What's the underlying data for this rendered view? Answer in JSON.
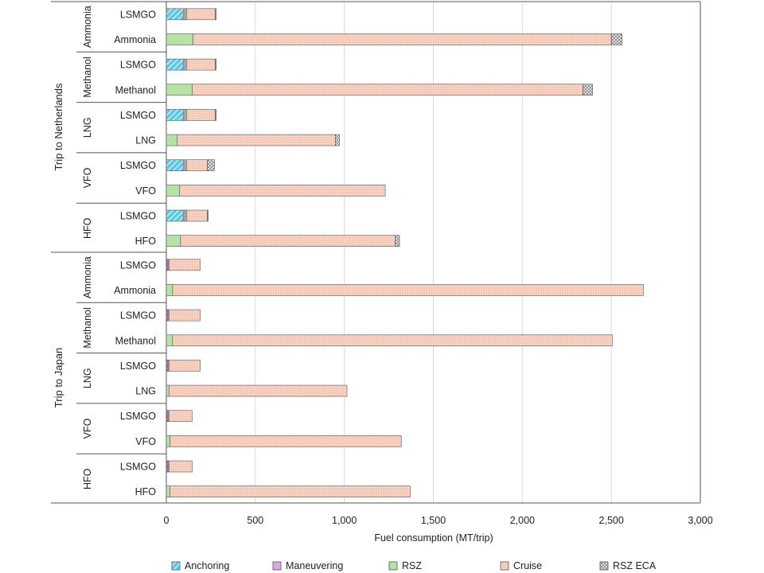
{
  "chart_data": {
    "type": "bar",
    "orientation": "horizontal",
    "stacked": true,
    "xlabel": "Fuel consumption (MT/trip)",
    "xlim": [
      0,
      3000
    ],
    "xticks": [
      0,
      500,
      1000,
      1500,
      2000,
      2500,
      3000
    ],
    "xtick_labels": [
      "0",
      "500",
      "1,000",
      "1,500",
      "2,000",
      "2,500",
      "3,000"
    ],
    "grid": "vertical",
    "legend_position": "bottom",
    "series": [
      {
        "name": "Anchoring",
        "color": "#5bc8e8",
        "pattern": "diagonal-stripes"
      },
      {
        "name": "Maneuvering",
        "color": "#d9a6e6",
        "pattern": "solid"
      },
      {
        "name": "RSZ",
        "color": "#b5e3a5",
        "pattern": "solid"
      },
      {
        "name": "Cruise",
        "color": "#f6c8b8",
        "pattern": "fine-grid"
      },
      {
        "name": "RSZ ECA",
        "color": "#b8b8b8",
        "pattern": "crosshatch"
      }
    ],
    "trips": [
      {
        "label": "Trip to Netherlands",
        "groups": [
          {
            "label": "Ammonia",
            "bars": [
              {
                "label": "LSMGO",
                "values": [
                  95,
                  10,
                  10,
                  160,
                  5
                ]
              },
              {
                "label": "Ammonia",
                "values": [
                  0,
                  0,
                  150,
                  2350,
                  60
                ]
              }
            ]
          },
          {
            "label": "Methanol",
            "bars": [
              {
                "label": "LSMGO",
                "values": [
                  95,
                  10,
                  10,
                  160,
                  5
                ]
              },
              {
                "label": "Methanol",
                "values": [
                  0,
                  0,
                  145,
                  2195,
                  55
                ]
              }
            ]
          },
          {
            "label": "LNG",
            "bars": [
              {
                "label": "LSMGO",
                "values": [
                  95,
                  10,
                  10,
                  160,
                  5
                ]
              },
              {
                "label": "LNG",
                "values": [
                  0,
                  0,
                  60,
                  890,
                  22
                ]
              }
            ]
          },
          {
            "label": "VFO",
            "bars": [
              {
                "label": "LSMGO",
                "values": [
                  95,
                  10,
                  10,
                  115,
                  40
                ]
              },
              {
                "label": "VFO",
                "values": [
                  0,
                  0,
                  75,
                  1155,
                  0
                ]
              }
            ]
          },
          {
            "label": "HFO",
            "bars": [
              {
                "label": "LSMGO",
                "values": [
                  95,
                  10,
                  10,
                  115,
                  5
                ]
              },
              {
                "label": "HFO",
                "values": [
                  0,
                  0,
                  80,
                  1205,
                  25
                ]
              }
            ]
          }
        ]
      },
      {
        "label": "Trip to Japan",
        "groups": [
          {
            "label": "Ammonia",
            "bars": [
              {
                "label": "LSMGO",
                "values": [
                  5,
                  5,
                  5,
                  175,
                  0
                ]
              },
              {
                "label": "Ammonia",
                "values": [
                  0,
                  0,
                  35,
                  2645,
                  0
                ]
              }
            ]
          },
          {
            "label": "Methanol",
            "bars": [
              {
                "label": "LSMGO",
                "values": [
                  5,
                  5,
                  5,
                  175,
                  0
                ]
              },
              {
                "label": "Methanol",
                "values": [
                  0,
                  0,
                  35,
                  2470,
                  0
                ]
              }
            ]
          },
          {
            "label": "LNG",
            "bars": [
              {
                "label": "LSMGO",
                "values": [
                  5,
                  5,
                  5,
                  175,
                  0
                ]
              },
              {
                "label": "LNG",
                "values": [
                  0,
                  0,
                  15,
                  1000,
                  0
                ]
              }
            ]
          },
          {
            "label": "VFO",
            "bars": [
              {
                "label": "LSMGO",
                "values": [
                  5,
                  5,
                  5,
                  130,
                  0
                ]
              },
              {
                "label": "VFO",
                "values": [
                  0,
                  0,
                  20,
                  1300,
                  0
                ]
              }
            ]
          },
          {
            "label": "HFO",
            "bars": [
              {
                "label": "LSMGO",
                "values": [
                  5,
                  5,
                  5,
                  130,
                  0
                ]
              },
              {
                "label": "HFO",
                "values": [
                  0,
                  0,
                  20,
                  1350,
                  0
                ]
              }
            ]
          }
        ]
      }
    ]
  }
}
